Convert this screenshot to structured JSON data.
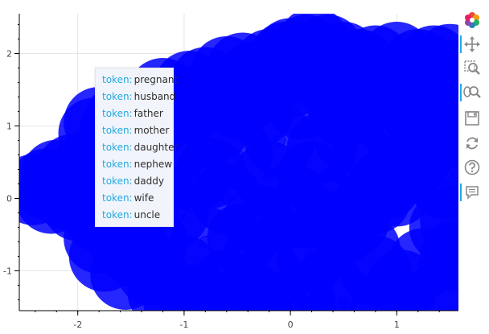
{
  "chart_data": {
    "type": "scatter",
    "title": "",
    "xlabel": "",
    "ylabel": "",
    "xlim": [
      -2.55,
      1.58
    ],
    "ylim": [
      -1.55,
      2.55
    ],
    "x_ticks": [
      "-2",
      "-1",
      "0",
      "1"
    ],
    "y_ticks": [
      "-1",
      "0",
      "1",
      "2"
    ],
    "grid": true,
    "point_color": "#0000ff",
    "point_alpha": 0.45,
    "points": [
      [
        -2.42,
        0.12
      ],
      [
        -2.3,
        0.2
      ],
      [
        -2.2,
        0.32
      ],
      [
        -2.05,
        0.4
      ],
      [
        -1.9,
        0.45
      ],
      [
        -1.75,
        0.55
      ],
      [
        -1.85,
        0.9
      ],
      [
        -1.8,
        1.05
      ],
      [
        -1.6,
        1.1
      ],
      [
        -1.45,
        1.3
      ],
      [
        -1.2,
        1.45
      ],
      [
        -0.95,
        1.55
      ],
      [
        -0.8,
        1.6
      ],
      [
        -0.6,
        1.75
      ],
      [
        -0.45,
        1.8
      ],
      [
        -0.35,
        1.68
      ],
      [
        -0.2,
        1.85
      ],
      [
        0.0,
        2.0
      ],
      [
        0.15,
        2.05
      ],
      [
        0.22,
        2.15
      ],
      [
        0.35,
        2.05
      ],
      [
        0.5,
        1.95
      ],
      [
        0.65,
        1.85
      ],
      [
        0.8,
        1.9
      ],
      [
        1.0,
        1.95
      ],
      [
        1.2,
        1.85
      ],
      [
        1.35,
        1.9
      ],
      [
        1.5,
        1.92
      ],
      [
        1.55,
        1.7
      ],
      [
        1.5,
        1.4
      ],
      [
        -2.0,
        -0.1
      ],
      [
        -1.8,
        -0.25
      ],
      [
        -1.6,
        -0.5
      ],
      [
        -1.45,
        -0.75
      ],
      [
        -1.3,
        -1.0
      ],
      [
        -1.2,
        -1.3
      ],
      [
        -1.05,
        -1.45
      ],
      [
        -0.7,
        -1.5
      ],
      [
        -0.3,
        -1.45
      ],
      [
        0.1,
        -1.5
      ],
      [
        0.5,
        -1.45
      ],
      [
        0.9,
        -1.5
      ],
      [
        1.3,
        -1.45
      ],
      [
        1.5,
        -1.2
      ],
      [
        1.55,
        -0.8
      ],
      [
        1.55,
        -0.3
      ],
      [
        1.55,
        0.3
      ],
      [
        1.55,
        0.9
      ],
      [
        -1.75,
        -0.8
      ],
      [
        -1.8,
        -0.55
      ],
      [
        -2.1,
        0.05
      ],
      [
        -1.95,
        0.22
      ],
      [
        -1.7,
        0.3
      ],
      [
        -1.55,
        0.7
      ],
      [
        -1.35,
        0.95
      ],
      [
        -1.1,
        1.2
      ],
      [
        -0.85,
        1.35
      ],
      [
        -0.6,
        1.45
      ],
      [
        -0.3,
        1.5
      ],
      [
        0.0,
        1.6
      ],
      [
        0.3,
        1.7
      ],
      [
        0.6,
        1.6
      ],
      [
        0.9,
        1.6
      ],
      [
        1.2,
        1.55
      ],
      [
        1.4,
        1.2
      ],
      [
        1.3,
        0.8
      ],
      [
        1.1,
        0.4
      ],
      [
        0.8,
        0.0
      ],
      [
        0.5,
        -0.4
      ],
      [
        0.2,
        -0.8
      ],
      [
        -0.2,
        -1.1
      ],
      [
        -0.6,
        -1.2
      ],
      [
        -1.0,
        -1.0
      ],
      [
        -1.3,
        -0.6
      ],
      [
        -1.5,
        -0.2
      ],
      [
        -1.4,
        0.3
      ],
      [
        -1.1,
        0.7
      ],
      [
        -0.7,
        1.0
      ],
      [
        -0.3,
        1.2
      ],
      [
        0.1,
        1.3
      ],
      [
        0.5,
        1.2
      ],
      [
        0.9,
        1.1
      ],
      [
        1.2,
        0.6
      ],
      [
        1.0,
        0.1
      ],
      [
        0.6,
        -0.3
      ],
      [
        0.2,
        -0.6
      ],
      [
        -0.3,
        -0.8
      ],
      [
        -0.8,
        -0.6
      ],
      [
        -1.1,
        -0.2
      ],
      [
        -0.9,
        0.3
      ],
      [
        -0.5,
        0.6
      ],
      [
        -0.1,
        0.8
      ],
      [
        0.3,
        0.7
      ],
      [
        0.7,
        0.5
      ],
      [
        0.9,
        0.2
      ],
      [
        0.5,
        0.0
      ],
      [
        0.1,
        -0.2
      ],
      [
        -0.3,
        -0.3
      ],
      [
        -0.6,
        0.0
      ],
      [
        -0.2,
        0.3
      ],
      [
        0.2,
        0.3
      ],
      [
        0.0,
        0.0
      ],
      [
        -0.4,
        -1.35
      ],
      [
        0.35,
        -1.2
      ],
      [
        0.8,
        -1.0
      ],
      [
        1.25,
        -0.9
      ],
      [
        1.45,
        -0.4
      ],
      [
        1.45,
        0.2
      ],
      [
        1.35,
        1.6
      ],
      [
        0.45,
        1.45
      ],
      [
        -0.05,
        1.95
      ],
      [
        -0.25,
        1.55
      ],
      [
        -0.95,
        1.25
      ],
      [
        -1.65,
        0.95
      ],
      [
        -1.25,
        0.05
      ],
      [
        -1.6,
        0.15
      ],
      [
        -1.95,
        0.1
      ],
      [
        -2.25,
        0.0
      ],
      [
        -0.15,
        -1.5
      ],
      [
        -0.9,
        -1.4
      ],
      [
        1.05,
        -1.2
      ],
      [
        0.7,
        -0.7
      ],
      [
        -0.45,
        -0.55
      ],
      [
        -0.75,
        0.35
      ],
      [
        0.55,
        0.85
      ],
      [
        1.05,
        0.75
      ],
      [
        1.15,
        1.25
      ],
      [
        -0.5,
        1.3
      ],
      [
        -1.3,
        1.1
      ],
      [
        -1.55,
        -1.05
      ]
    ]
  },
  "tooltip": {
    "key": "token:",
    "values": [
      "pregnant",
      "husband",
      "father",
      "mother",
      "daughter",
      "nephew",
      "daddy",
      "wife",
      "uncle"
    ]
  },
  "toolbar": {
    "icons": [
      "bokeh-logo-icon",
      "pan-icon",
      "box-zoom-icon",
      "wheel-zoom-icon",
      "save-icon",
      "reset-icon",
      "help-icon",
      "hover-icon"
    ]
  }
}
